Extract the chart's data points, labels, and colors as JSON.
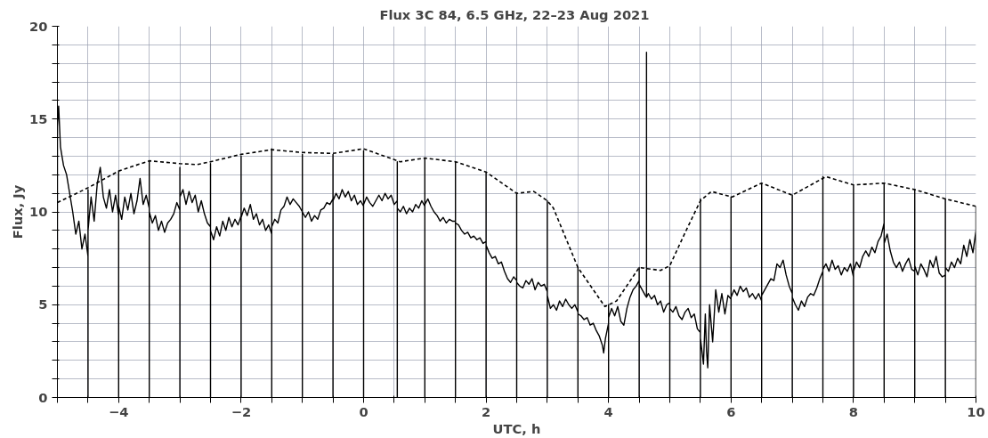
{
  "chart_data": {
    "type": "line",
    "title": "Flux 3C 84, 6.5 GHz,  22–23 Aug 2021",
    "xlabel": "UTC, h",
    "ylabel": "Flux, Jy",
    "xlim": [
      -5,
      10
    ],
    "ylim": [
      0,
      20
    ],
    "xticks": [
      {
        "value": -5,
        "label": null
      },
      {
        "value": -4.5,
        "label": null
      },
      {
        "value": -4,
        "label": "−4"
      },
      {
        "value": -3.5,
        "label": null
      },
      {
        "value": -3,
        "label": null
      },
      {
        "value": -2.5,
        "label": null
      },
      {
        "value": -2,
        "label": "−2"
      },
      {
        "value": -1.5,
        "label": null
      },
      {
        "value": -1,
        "label": null
      },
      {
        "value": -0.5,
        "label": null
      },
      0,
      {
        "value": 0.5,
        "label": null
      },
      {
        "value": 1,
        "label": null
      },
      {
        "value": 1.5,
        "label": null
      },
      2,
      {
        "value": 2.5,
        "label": null
      },
      {
        "value": 3,
        "label": null
      },
      {
        "value": 3.5,
        "label": null
      },
      4,
      {
        "value": 4.5,
        "label": null
      },
      {
        "value": 5,
        "label": null
      },
      {
        "value": 5.5,
        "label": null
      },
      6,
      {
        "value": 6.5,
        "label": null
      },
      {
        "value": 7,
        "label": null
      },
      {
        "value": 7.5,
        "label": null
      },
      8,
      {
        "value": 8.5,
        "label": null
      },
      {
        "value": 9,
        "label": null
      },
      {
        "value": 9.5,
        "label": null
      },
      10
    ],
    "yticks": [
      0,
      {
        "value": 1,
        "label": null
      },
      {
        "value": 2,
        "label": null
      },
      {
        "value": 3,
        "label": null
      },
      {
        "value": 4,
        "label": null
      },
      5,
      {
        "value": 6,
        "label": null
      },
      {
        "value": 7,
        "label": null
      },
      {
        "value": 8,
        "label": null
      },
      {
        "value": 9,
        "label": null
      },
      10,
      {
        "value": 11,
        "label": null
      },
      {
        "value": 12,
        "label": null
      },
      {
        "value": 13,
        "label": null
      },
      {
        "value": 14,
        "label": null
      },
      15,
      {
        "value": 16,
        "label": null
      },
      {
        "value": 17,
        "label": null
      },
      {
        "value": 18,
        "label": null
      },
      {
        "value": 19,
        "label": null
      },
      20
    ],
    "grid": true,
    "marker": "none",
    "series": [
      {
        "color": "#000000",
        "line_style": "solid",
        "x": [
          -5.0,
          -5.0,
          -4.98,
          -4.95,
          -4.9,
          -4.85,
          -4.8,
          -4.75,
          -4.7,
          -4.65,
          -4.6,
          -4.55,
          -4.5,
          -4.5,
          -4.5,
          -4.5,
          -4.45,
          -4.4,
          -4.35,
          -4.3,
          -4.25,
          -4.2,
          -4.15,
          -4.1,
          -4.05,
          -4.0,
          -4.0,
          -4.0,
          -4.0,
          -3.95,
          -3.9,
          -3.85,
          -3.8,
          -3.75,
          -3.7,
          -3.65,
          -3.6,
          -3.55,
          -3.5,
          -3.5,
          -3.5,
          -3.5,
          -3.45,
          -3.4,
          -3.35,
          -3.3,
          -3.25,
          -3.2,
          -3.15,
          -3.1,
          -3.05,
          -3.0,
          -3.0,
          -3.0,
          -3.0,
          -2.95,
          -2.9,
          -2.85,
          -2.8,
          -2.75,
          -2.7,
          -2.65,
          -2.6,
          -2.55,
          -2.5,
          -2.5,
          -2.5,
          -2.5,
          -2.45,
          -2.4,
          -2.35,
          -2.3,
          -2.25,
          -2.2,
          -2.15,
          -2.1,
          -2.05,
          -2.0,
          -2.0,
          -2.0,
          -2.0,
          -1.95,
          -1.9,
          -1.85,
          -1.8,
          -1.75,
          -1.7,
          -1.65,
          -1.6,
          -1.55,
          -1.5,
          -1.5,
          -1.5,
          -1.5,
          -1.45,
          -1.4,
          -1.35,
          -1.3,
          -1.25,
          -1.2,
          -1.15,
          -1.1,
          -1.05,
          -1.0,
          -1.0,
          -1.0,
          -1.0,
          -0.95,
          -0.9,
          -0.85,
          -0.8,
          -0.75,
          -0.7,
          -0.65,
          -0.6,
          -0.55,
          -0.5,
          -0.5,
          -0.5,
          -0.5,
          -0.45,
          -0.4,
          -0.35,
          -0.3,
          -0.25,
          -0.2,
          -0.15,
          -0.1,
          -0.05,
          0.0,
          0.0,
          0.0,
          0.0,
          0.05,
          0.1,
          0.15,
          0.2,
          0.25,
          0.3,
          0.35,
          0.4,
          0.45,
          0.5,
          0.55,
          0.55,
          0.55,
          0.55,
          0.6,
          0.65,
          0.7,
          0.75,
          0.8,
          0.85,
          0.9,
          0.95,
          1.0,
          1.0,
          1.0,
          1.0,
          1.05,
          1.1,
          1.15,
          1.2,
          1.25,
          1.3,
          1.35,
          1.4,
          1.45,
          1.5,
          1.5,
          1.5,
          1.5,
          1.55,
          1.6,
          1.65,
          1.7,
          1.75,
          1.8,
          1.85,
          1.9,
          1.95,
          2.0,
          2.0,
          2.0,
          2.0,
          2.05,
          2.1,
          2.15,
          2.2,
          2.25,
          2.3,
          2.35,
          2.4,
          2.45,
          2.5,
          2.5,
          2.5,
          2.5,
          2.55,
          2.6,
          2.65,
          2.7,
          2.75,
          2.8,
          2.85,
          2.9,
          2.95,
          3.0,
          3.0,
          3.0,
          3.0,
          3.05,
          3.1,
          3.15,
          3.2,
          3.25,
          3.3,
          3.35,
          3.4,
          3.45,
          3.5,
          3.5,
          3.5,
          3.5,
          3.55,
          3.6,
          3.65,
          3.7,
          3.75,
          3.8,
          3.85,
          3.9,
          3.92,
          3.95,
          4.0,
          4.0,
          4.0,
          4.0,
          4.05,
          4.1,
          4.15,
          4.2,
          4.25,
          4.3,
          4.35,
          4.4,
          4.45,
          4.5,
          4.5,
          4.5,
          4.5,
          4.55,
          4.6,
          4.62,
          4.62,
          4.62,
          4.65,
          4.7,
          4.75,
          4.8,
          4.85,
          4.9,
          4.95,
          5.0,
          5.0,
          5.0,
          5.0,
          5.05,
          5.1,
          5.15,
          5.2,
          5.25,
          5.3,
          5.35,
          5.4,
          5.45,
          5.5,
          5.5,
          5.5,
          5.5,
          5.55,
          5.58,
          5.6,
          5.62,
          5.65,
          5.7,
          5.75,
          5.8,
          5.85,
          5.9,
          5.95,
          6.0,
          6.0,
          6.0,
          6.0,
          6.05,
          6.1,
          6.15,
          6.2,
          6.25,
          6.3,
          6.35,
          6.4,
          6.45,
          6.5,
          6.5,
          6.5,
          6.5,
          6.55,
          6.6,
          6.65,
          6.7,
          6.75,
          6.8,
          6.85,
          6.9,
          6.95,
          7.0,
          7.0,
          7.0,
          7.0,
          7.05,
          7.1,
          7.15,
          7.2,
          7.25,
          7.3,
          7.35,
          7.4,
          7.45,
          7.5,
          7.5,
          7.5,
          7.5,
          7.55,
          7.6,
          7.65,
          7.7,
          7.75,
          7.8,
          7.85,
          7.9,
          7.95,
          8.0,
          8.0,
          8.0,
          8.0,
          8.05,
          8.1,
          8.15,
          8.2,
          8.25,
          8.3,
          8.35,
          8.4,
          8.45,
          8.5,
          8.5,
          8.5,
          8.5,
          8.55,
          8.6,
          8.65,
          8.7,
          8.75,
          8.8,
          8.85,
          8.9,
          8.95,
          9.0,
          9.0,
          9.0,
          9.0,
          9.05,
          9.1,
          9.15,
          9.2,
          9.25,
          9.3,
          9.35,
          9.4,
          9.45,
          9.5,
          9.5,
          9.5,
          9.5,
          9.55,
          9.6,
          9.65,
          9.7,
          9.75,
          9.8,
          9.85,
          9.9,
          9.95,
          10.0,
          10.0,
          10.0
        ],
        "values": [
          3.8,
          14.6,
          15.7,
          13.5,
          12.5,
          12.0,
          11.0,
          10.0,
          8.8,
          9.5,
          8.0,
          8.8,
          7.6,
          0,
          11.2,
          9.0,
          10.8,
          9.5,
          11.5,
          12.4,
          10.8,
          10.2,
          11.2,
          10.0,
          10.9,
          9.8,
          0,
          12.2,
          10.3,
          9.6,
          10.8,
          10.1,
          11.0,
          9.9,
          10.6,
          11.8,
          10.4,
          10.9,
          10.2,
          0,
          12.7,
          10.0,
          9.4,
          9.8,
          9.0,
          9.5,
          8.9,
          9.4,
          9.6,
          9.9,
          10.5,
          10.1,
          0,
          12.4,
          10.8,
          11.2,
          10.4,
          11.1,
          10.5,
          10.9,
          10.0,
          10.6,
          9.9,
          9.4,
          9.2,
          0,
          12.6,
          9.0,
          8.5,
          9.2,
          8.7,
          9.5,
          9.0,
          9.7,
          9.2,
          9.6,
          9.3,
          9.8,
          0,
          13.0,
          9.7,
          10.2,
          9.8,
          10.4,
          9.6,
          9.9,
          9.3,
          9.6,
          9.0,
          9.3,
          8.8,
          0,
          13.4,
          9.2,
          9.6,
          9.4,
          10.1,
          10.3,
          10.8,
          10.4,
          10.7,
          10.5,
          10.3,
          10.0,
          0,
          13.1,
          10.0,
          9.7,
          10.0,
          9.5,
          9.8,
          9.6,
          10.1,
          10.2,
          10.5,
          10.4,
          10.7,
          0,
          13.1,
          10.6,
          11.0,
          10.7,
          11.2,
          10.8,
          11.1,
          10.6,
          10.9,
          10.4,
          10.6,
          10.3,
          0,
          13.3,
          10.4,
          10.8,
          10.5,
          10.3,
          10.6,
          10.9,
          10.6,
          11.0,
          10.7,
          10.9,
          10.4,
          10.6,
          0,
          12.7,
          10.2,
          10.0,
          10.3,
          9.9,
          10.2,
          10.0,
          10.4,
          10.2,
          10.6,
          10.3,
          0,
          12.9,
          10.4,
          10.7,
          10.3,
          10.0,
          9.8,
          9.5,
          9.7,
          9.4,
          9.6,
          9.5,
          9.5,
          0,
          12.7,
          9.4,
          9.3,
          9.0,
          8.8,
          8.9,
          8.6,
          8.7,
          8.5,
          8.6,
          8.3,
          8.4,
          0,
          12.1,
          8.2,
          7.8,
          7.5,
          7.6,
          7.2,
          7.3,
          6.8,
          6.4,
          6.2,
          6.5,
          6.3,
          0,
          11.0,
          6.2,
          6.0,
          5.9,
          6.3,
          6.1,
          6.4,
          5.8,
          6.2,
          6.0,
          6.1,
          5.7,
          0,
          10.6,
          5.5,
          4.8,
          5.0,
          4.7,
          5.2,
          4.9,
          5.3,
          5.0,
          4.8,
          5.0,
          4.6,
          0,
          7.0,
          4.5,
          4.4,
          4.2,
          4.3,
          3.9,
          4.0,
          3.6,
          3.3,
          2.8,
          2.4,
          3.2,
          4.0,
          0,
          5.0,
          4.3,
          4.8,
          4.4,
          4.9,
          4.1,
          3.9,
          4.8,
          5.4,
          5.8,
          6.0,
          6.3,
          0,
          7.0,
          6.1,
          5.8,
          5.5,
          5.4,
          18.6,
          5.4,
          5.6,
          5.3,
          5.5,
          5.0,
          5.2,
          4.6,
          5.0,
          5.1,
          0,
          7.0,
          4.8,
          4.6,
          4.9,
          4.4,
          4.2,
          4.6,
          4.8,
          4.3,
          4.5,
          3.7,
          3.5,
          0,
          10.7,
          3.2,
          1.8,
          4.5,
          2.5,
          1.6,
          5.0,
          3.0,
          5.8,
          4.6,
          5.6,
          4.5,
          5.5,
          5.3,
          0,
          10.8,
          5.4,
          5.8,
          5.5,
          6.0,
          5.7,
          5.9,
          5.4,
          5.6,
          5.3,
          5.6,
          5.2,
          0,
          11.5,
          5.5,
          5.8,
          6.1,
          6.4,
          6.3,
          7.2,
          7.0,
          7.4,
          6.6,
          6.0,
          5.6,
          0,
          10.9,
          5.4,
          5.0,
          4.7,
          5.2,
          4.9,
          5.4,
          5.6,
          5.5,
          5.9,
          6.4,
          6.8,
          0,
          11.9,
          6.9,
          7.2,
          6.8,
          7.4,
          6.9,
          7.1,
          6.6,
          7.0,
          6.8,
          7.2,
          6.5,
          0,
          11.4,
          6.8,
          7.3,
          7.0,
          7.6,
          7.9,
          7.6,
          8.1,
          7.8,
          8.4,
          8.7,
          9.4,
          0,
          11.5,
          8.3,
          8.8,
          7.9,
          7.3,
          7.0,
          7.3,
          6.8,
          7.2,
          7.5,
          6.9,
          6.8,
          0,
          11.2,
          7.1,
          6.6,
          7.2,
          6.9,
          6.5,
          7.4,
          7.0,
          7.6,
          6.7,
          6.5,
          6.6,
          0,
          10.7,
          7.0,
          6.8,
          7.3,
          7.0,
          7.5,
          7.2,
          8.2,
          7.6,
          8.5,
          7.8,
          9.0,
          0,
          10.3
        ]
      },
      {
        "color": "#000000",
        "line_style": "dashed",
        "x": [
          -5,
          -4.5,
          -4,
          -3.5,
          -3,
          -2.72,
          -2.5,
          -2,
          -1.5,
          -1,
          -0.5,
          0,
          0.6,
          1,
          1.5,
          2,
          2.5,
          2.78,
          3.0,
          3.1,
          3.5,
          3.94,
          4.13,
          4.5,
          4.85,
          5.0,
          5.26,
          5.5,
          5.68,
          6.02,
          6.5,
          7.0,
          7.55,
          8.0,
          8.5,
          9.0,
          9.5,
          10.0
        ],
        "values": [
          10.5,
          11.3,
          12.2,
          12.75,
          12.6,
          12.55,
          12.7,
          13.1,
          13.35,
          13.2,
          13.15,
          13.4,
          12.7,
          12.9,
          12.7,
          12.15,
          11.0,
          11.1,
          10.6,
          10.2,
          7.0,
          4.9,
          5.2,
          7.0,
          6.85,
          7.1,
          8.95,
          10.6,
          11.1,
          10.8,
          11.55,
          10.9,
          11.9,
          11.45,
          11.55,
          11.2,
          10.7,
          10.3
        ]
      }
    ]
  }
}
